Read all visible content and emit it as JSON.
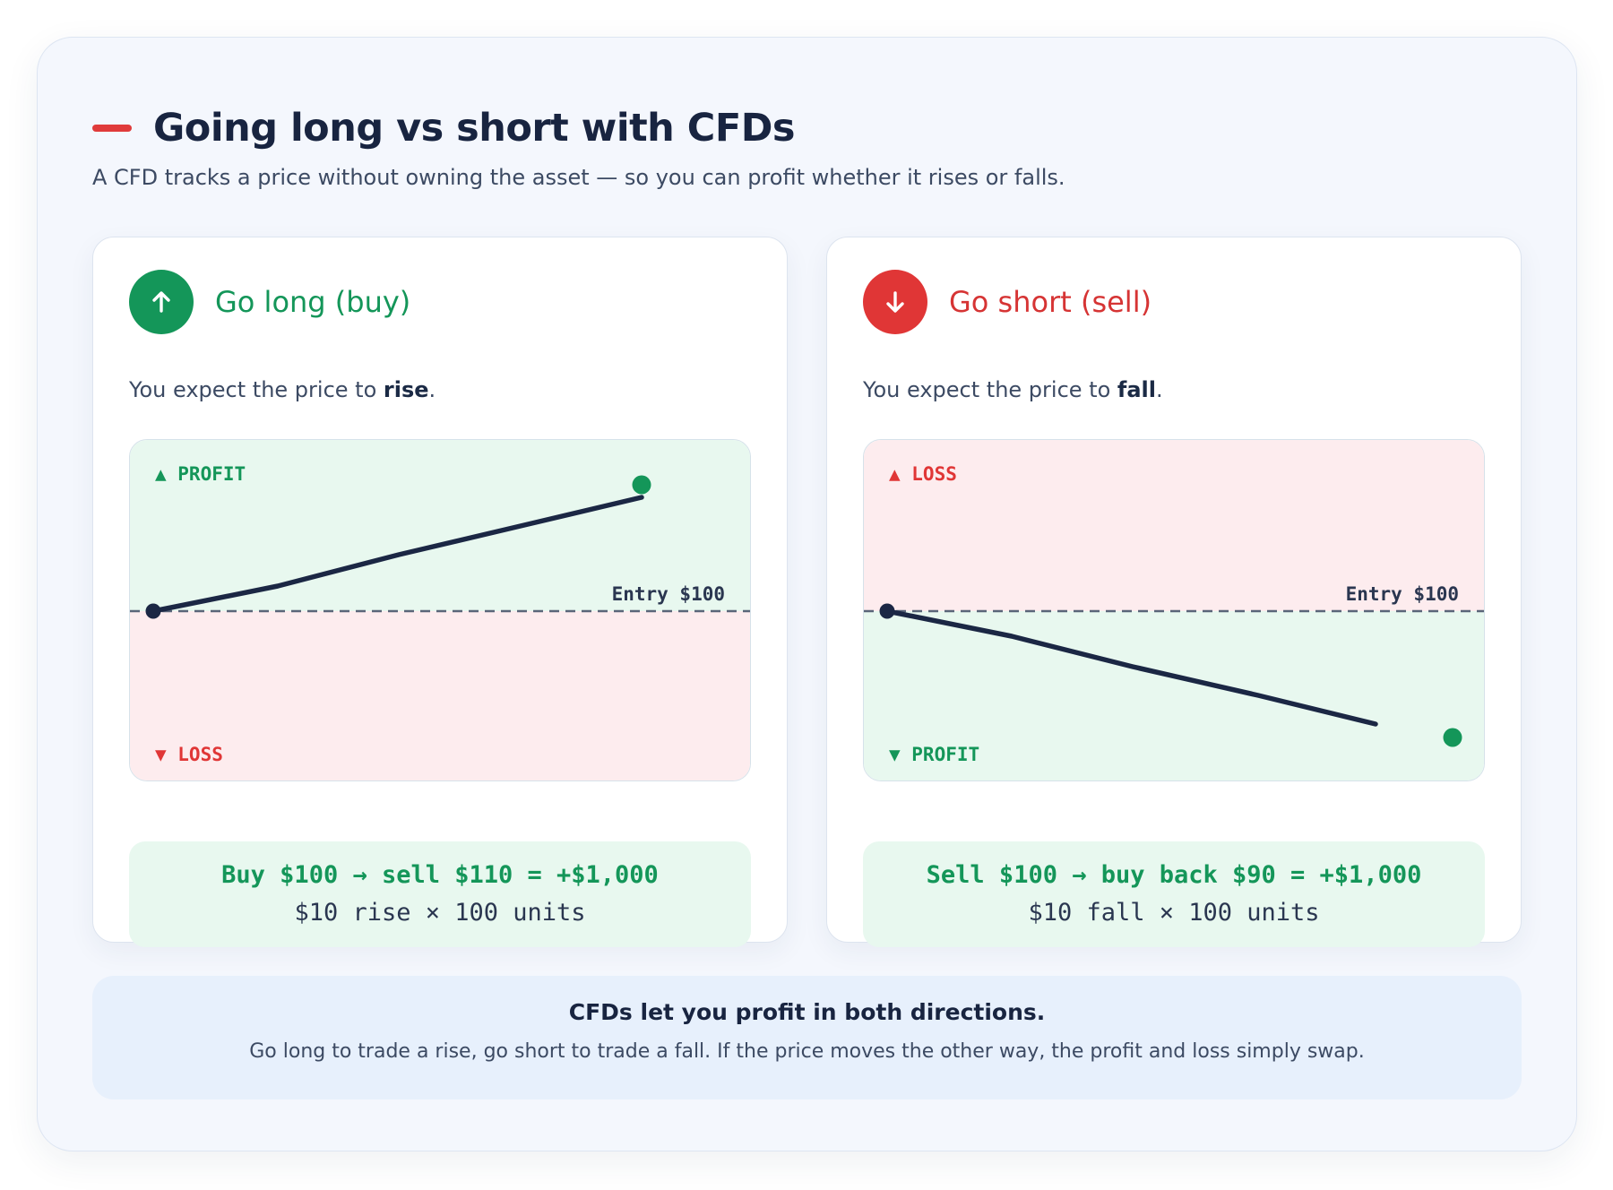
{
  "header": {
    "title": "Going long vs short with CFDs",
    "subtitle": "A CFD tracks a price without owning the asset — so you can profit whether it rises or falls."
  },
  "colors": {
    "accent_red": "#e03636",
    "green": "#149659",
    "navy": "#182440"
  },
  "long": {
    "title": "Go long (buy)",
    "icon": "arrow-up-icon",
    "desc_prefix": "You expect the price to ",
    "desc_bold": "rise",
    "desc_suffix": ".",
    "top_label": "▲ PROFIT",
    "bottom_label": "▼ LOSS",
    "entry_label": "Entry $100",
    "calc_main": "Buy $100 → sell $110 = +$1,000",
    "calc_sub": "$10 rise × 100 units"
  },
  "short": {
    "title": "Go short (sell)",
    "icon": "arrow-down-icon",
    "desc_prefix": "You expect the price to ",
    "desc_bold": "fall",
    "desc_suffix": ".",
    "top_label": "▲ LOSS",
    "bottom_label": "▼ PROFIT",
    "entry_label": "Entry $100",
    "calc_main": "Sell $100 → buy back $90 = +$1,000",
    "calc_sub": "$10 fall × 100 units"
  },
  "footer": {
    "title": "CFDs let you profit in both directions.",
    "text": "Go long to trade a rise, go short to trade a fall. If the price moves the other way, the profit and loss simply swap."
  }
}
